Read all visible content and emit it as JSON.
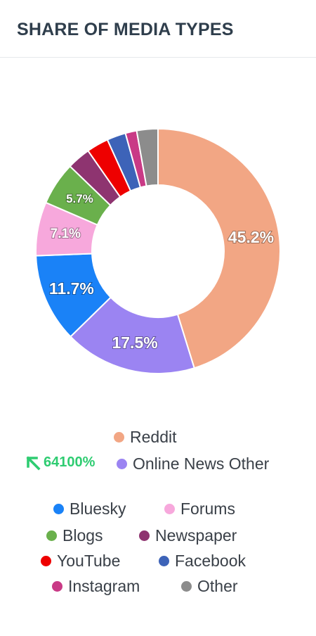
{
  "title": "SHARE OF MEDIA TYPES",
  "trend": {
    "value": "64100%",
    "direction": "up"
  },
  "chart_data": {
    "type": "pie",
    "donut": true,
    "categories": [
      "Reddit",
      "Online News Other",
      "Bluesky",
      "Forums",
      "Blogs",
      "Newspaper",
      "YouTube",
      "Facebook",
      "Instagram",
      "Other"
    ],
    "values": [
      45.2,
      17.5,
      11.7,
      7.1,
      5.7,
      3.1,
      2.9,
      2.5,
      1.5,
      2.8
    ],
    "labels": [
      "45.2%",
      "17.5%",
      "11.7%",
      "7.1%",
      "5.7%",
      "",
      "",
      "",
      "",
      ""
    ],
    "colors": [
      "#f2a684",
      "#9b84f2",
      "#1a82f7",
      "#f7a8dc",
      "#6ab04c",
      "#8e3470",
      "#ee0000",
      "#3d63b8",
      "#c93a86",
      "#8c8c8c"
    ],
    "legend_position": "bottom"
  }
}
